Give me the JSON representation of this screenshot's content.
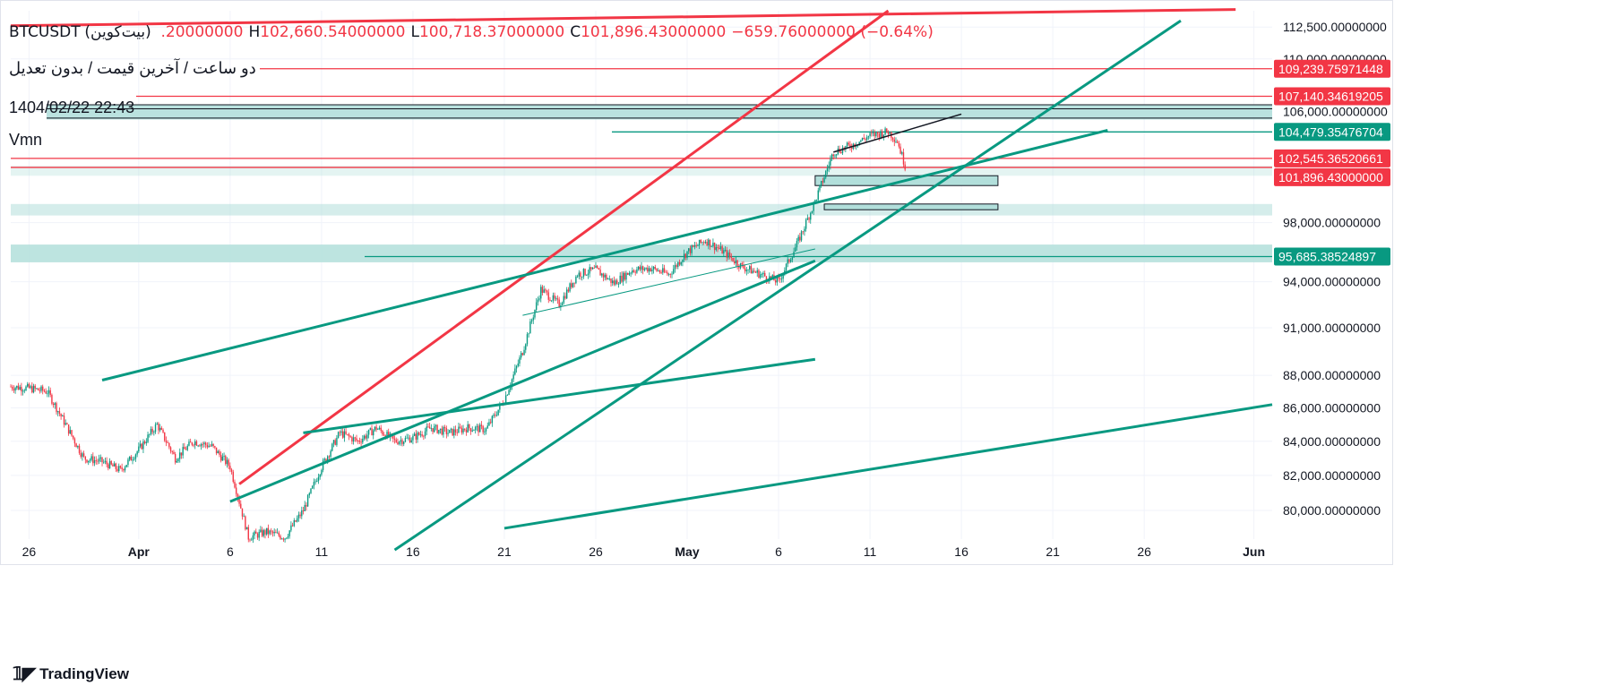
{
  "header": {
    "symbol": "BTCUSDT",
    "symbol_local": "(بیت‌کوین)",
    "ohlc": [
      {
        "k": "",
        "v": ".20000000"
      },
      {
        "k": "H",
        "v": "102,660.54000000"
      },
      {
        "k": "L",
        "v": "100,718.37000000"
      },
      {
        "k": "C",
        "v": "101,896.43000000"
      },
      {
        "k": "",
        "v": "−659.76000000 (−0.64%)"
      }
    ],
    "interval_text": "دو ساعت / آخرین قیمت / بدون تعدیل",
    "datetime": "1404/02/22 22:43",
    "indicator": "Vmn"
  },
  "branding": {
    "logo_text": "TradingView"
  },
  "colors": {
    "green": "#089981",
    "red": "#f23645",
    "zone": "#b2dfdb",
    "axis_text": "#131722",
    "grid": "#f0f3fa"
  },
  "chart_data": {
    "type": "candlestick",
    "symbol": "BTCUSDT",
    "interval": "2h",
    "y_scale": "log",
    "ylim": [
      78400,
      113800
    ],
    "xlim_days": [
      "2025-03-25",
      "2025-06-02"
    ],
    "y_ticks": [
      {
        "value": 80000,
        "label": "80,000.00000000"
      },
      {
        "value": 82000,
        "label": "82,000.00000000"
      },
      {
        "value": 84000,
        "label": "84,000.00000000"
      },
      {
        "value": 86000,
        "label": "86,000.00000000"
      },
      {
        "value": 88000,
        "label": "88,000.00000000"
      },
      {
        "value": 91000,
        "label": "91,000.00000000"
      },
      {
        "value": 94000,
        "label": "94,000.00000000"
      },
      {
        "value": 98000,
        "label": "98,000.00000000"
      },
      {
        "value": 106000,
        "label": "106,000.00000000"
      },
      {
        "value": 110000,
        "label": "110,000.00000000"
      },
      {
        "value": 112500,
        "label": "112,500.00000000"
      }
    ],
    "x_ticks": [
      {
        "date": "2025-03-26",
        "label": "26",
        "bold": false
      },
      {
        "date": "2025-04-01",
        "label": "Apr",
        "bold": true
      },
      {
        "date": "2025-04-06",
        "label": "6",
        "bold": false
      },
      {
        "date": "2025-04-11",
        "label": "11",
        "bold": false
      },
      {
        "date": "2025-04-16",
        "label": "16",
        "bold": false
      },
      {
        "date": "2025-04-21",
        "label": "21",
        "bold": false
      },
      {
        "date": "2025-04-26",
        "label": "26",
        "bold": false
      },
      {
        "date": "2025-05-01",
        "label": "May",
        "bold": true
      },
      {
        "date": "2025-05-06",
        "label": "6",
        "bold": false
      },
      {
        "date": "2025-05-11",
        "label": "11",
        "bold": false
      },
      {
        "date": "2025-05-16",
        "label": "16",
        "bold": false
      },
      {
        "date": "2025-05-21",
        "label": "21",
        "bold": false
      },
      {
        "date": "2025-05-26",
        "label": "26",
        "bold": false
      },
      {
        "date": "2025-06-01",
        "label": "Jun",
        "bold": true
      }
    ],
    "price_labels": [
      {
        "value": 109239.75971448,
        "label": "109,239.75971448",
        "color": "#f23645"
      },
      {
        "value": 107140.34619205,
        "label": "107,140.34619205",
        "color": "#f23645"
      },
      {
        "value": 104479.35476704,
        "label": "104,479.35476704",
        "color": "#089981"
      },
      {
        "value": 102545.36520661,
        "label": "102,545.36520661",
        "color": "#f23645"
      },
      {
        "value": 101896.43,
        "label": "101,896.43000000",
        "color": "#f23645"
      },
      {
        "value": 95685.38524897,
        "label": "95,685.38524897",
        "color": "#089981"
      }
    ],
    "price_path": [
      [
        "2025-03-25",
        87300
      ],
      [
        "2025-03-26",
        87200
      ],
      [
        "2025-03-27",
        87000
      ],
      [
        "2025-03-28",
        85000
      ],
      [
        "2025-03-29",
        83000
      ],
      [
        "2025-03-30",
        82800
      ],
      [
        "2025-03-31",
        82300
      ],
      [
        "2025-04-01",
        83500
      ],
      [
        "2025-04-02",
        85000
      ],
      [
        "2025-04-03",
        83000
      ],
      [
        "2025-04-04",
        84000
      ],
      [
        "2025-04-05",
        83700
      ],
      [
        "2025-04-06",
        82500
      ],
      [
        "2025-04-07",
        78500
      ],
      [
        "2025-04-08",
        78800
      ],
      [
        "2025-04-09",
        78500
      ],
      [
        "2025-04-10",
        80000
      ],
      [
        "2025-04-11",
        82500
      ],
      [
        "2025-04-12",
        84500
      ],
      [
        "2025-04-13",
        84000
      ],
      [
        "2025-04-14",
        84800
      ],
      [
        "2025-04-15",
        84000
      ],
      [
        "2025-04-16",
        84200
      ],
      [
        "2025-04-17",
        84800
      ],
      [
        "2025-04-18",
        84500
      ],
      [
        "2025-04-19",
        84800
      ],
      [
        "2025-04-20",
        84700
      ],
      [
        "2025-04-21",
        86500
      ],
      [
        "2025-04-22",
        89500
      ],
      [
        "2025-04-23",
        93500
      ],
      [
        "2025-04-24",
        92500
      ],
      [
        "2025-04-25",
        94500
      ],
      [
        "2025-04-26",
        94800
      ],
      [
        "2025-04-27",
        93900
      ],
      [
        "2025-04-28",
        94800
      ],
      [
        "2025-04-29",
        94900
      ],
      [
        "2025-04-30",
        94500
      ],
      [
        "2025-05-01",
        96000
      ],
      [
        "2025-05-02",
        96800
      ],
      [
        "2025-05-03",
        96000
      ],
      [
        "2025-05-04",
        95000
      ],
      [
        "2025-05-05",
        94500
      ],
      [
        "2025-05-06",
        94000
      ],
      [
        "2025-05-07",
        96500
      ],
      [
        "2025-05-08",
        99500
      ],
      [
        "2025-05-09",
        103000
      ],
      [
        "2025-05-10",
        103500
      ],
      [
        "2025-05-11",
        104200
      ],
      [
        "2025-05-12",
        104500
      ],
      [
        "2025-05-12T12:00",
        103800
      ],
      [
        "2025-05-12T22:43",
        101896
      ]
    ],
    "red_lines": [
      {
        "from": [
          "2025-04-06T12:00",
          81500
        ],
        "to": [
          "2025-05-12",
          113800
        ]
      },
      {
        "from": [
          "2025-03-25",
          112600
        ],
        "to": [
          "2025-05-31",
          113900
        ]
      }
    ],
    "green_lines": [
      {
        "from": [
          "2025-03-30",
          87700
        ],
        "to": [
          "2025-05-24",
          104600
        ]
      },
      {
        "from": [
          "2025-04-06",
          80500
        ],
        "to": [
          "2025-05-08",
          95400
        ]
      },
      {
        "from": [
          "2025-04-10",
          84500
        ],
        "to": [
          "2025-05-08",
          89000
        ]
      },
      {
        "from": [
          "2025-04-15",
          77800
        ],
        "to": [
          "2025-05-28",
          113000
        ]
      },
      {
        "from": [
          "2025-04-21",
          79000
        ],
        "to": [
          "2025-06-02",
          86200
        ]
      }
    ]
  }
}
